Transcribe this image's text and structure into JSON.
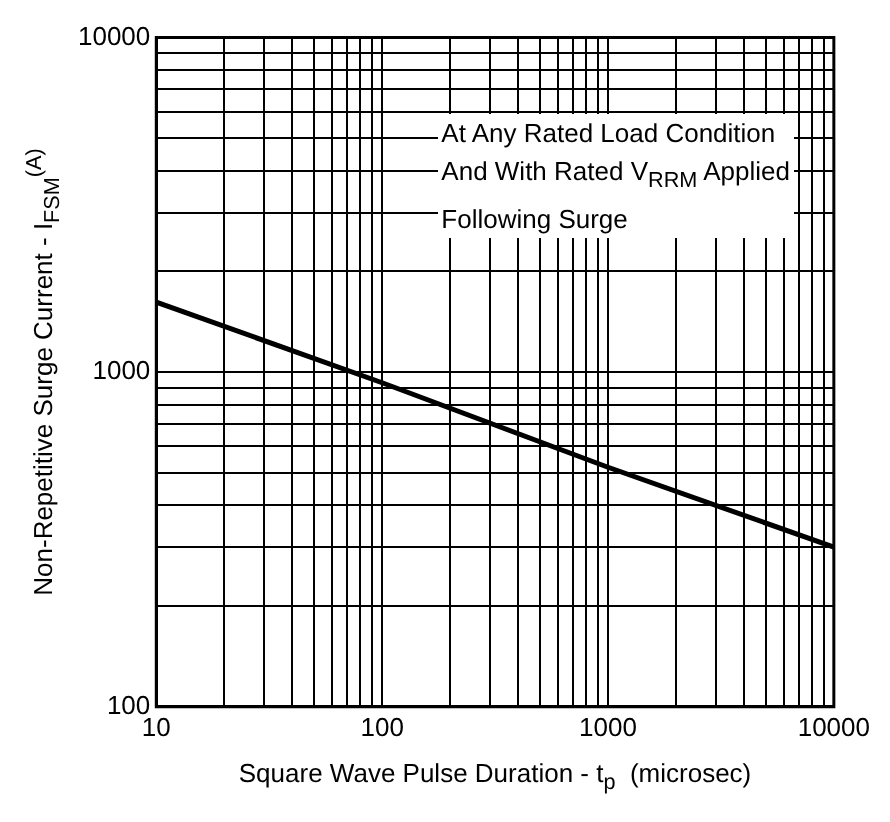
{
  "chart_data": {
    "type": "line",
    "xlabel": "Square Wave Pulse Duration - t$_{p}$  (microsec)",
    "ylabel": "Non-Repetitive Surge Current - I$_{FSM}$$^{(A)}$",
    "annotations": [
      "At Any Rated Load Condition\nAnd With Rated V$_{RRM}$ Applied\nFollowing Surge"
    ],
    "series": [
      {
        "color": "#000000",
        "x": [
          10,
          100,
          1000,
          10000
        ],
        "values": [
          1620,
          930,
          520,
          300
        ]
      }
    ],
    "log": "xy",
    "grid": true,
    "legend": false,
    "marker": "none",
    "line_style": "solid",
    "xlim": [
      10,
      10000
    ],
    "ylim": [
      100,
      10000
    ],
    "xticks": [
      10,
      {
        "value": 20,
        "label": null
      },
      {
        "value": 30,
        "label": null
      },
      {
        "value": 40,
        "label": null
      },
      {
        "value": 50,
        "label": null
      },
      {
        "value": 60,
        "label": null
      },
      {
        "value": 70,
        "label": null
      },
      {
        "value": 80,
        "label": null
      },
      {
        "value": 90,
        "label": null
      },
      100,
      {
        "value": 200,
        "label": null
      },
      {
        "value": 300,
        "label": null
      },
      {
        "value": 400,
        "label": null
      },
      {
        "value": 500,
        "label": null
      },
      {
        "value": 600,
        "label": null
      },
      {
        "value": 700,
        "label": null
      },
      {
        "value": 800,
        "label": null
      },
      {
        "value": 900,
        "label": null
      },
      1000,
      {
        "value": 2000,
        "label": null
      },
      {
        "value": 3000,
        "label": null
      },
      {
        "value": 4000,
        "label": null
      },
      {
        "value": 5000,
        "label": null
      },
      {
        "value": 6000,
        "label": null
      },
      {
        "value": 7000,
        "label": null
      },
      {
        "value": 8000,
        "label": null
      },
      {
        "value": 9000,
        "label": null
      },
      10000
    ],
    "yticks": [
      100,
      {
        "value": 200,
        "label": null
      },
      {
        "value": 300,
        "label": null
      },
      {
        "value": 400,
        "label": null
      },
      {
        "value": 500,
        "label": null
      },
      {
        "value": 600,
        "label": null
      },
      {
        "value": 700,
        "label": null
      },
      {
        "value": 800,
        "label": null
      },
      {
        "value": 900,
        "label": null
      },
      1000,
      {
        "value": 2000,
        "label": null
      },
      {
        "value": 3000,
        "label": null
      },
      {
        "value": 4000,
        "label": null
      },
      {
        "value": 5000,
        "label": null
      },
      {
        "value": 6000,
        "label": null
      },
      {
        "value": 7000,
        "label": null
      },
      {
        "value": 8000,
        "label": null
      },
      {
        "value": 9000,
        "label": null
      },
      10000
    ]
  }
}
